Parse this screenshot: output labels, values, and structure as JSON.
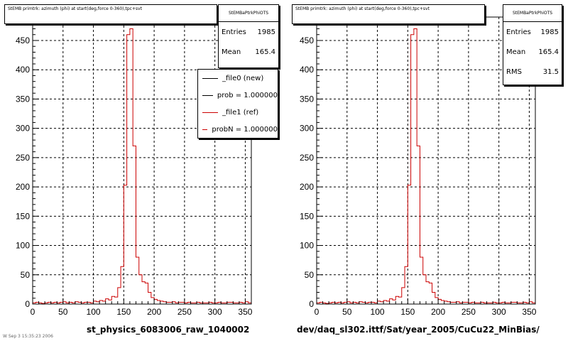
{
  "footer_text": "W Sep 3 15:35:23 2006",
  "chart_data": [
    {
      "type": "histogram",
      "title": "StEMB primtrk: azimuth (phi) at start(deg,force 0-360),tpc+svt",
      "xlabel": "st_physics_6083006_raw_1040002",
      "ylabel": "",
      "xlim": [
        0,
        360
      ],
      "ylim": [
        0,
        490
      ],
      "bin_width": 5,
      "x_ticks": [
        0,
        50,
        100,
        150,
        200,
        250,
        300,
        350
      ],
      "y_ticks": [
        0,
        50,
        100,
        150,
        200,
        250,
        300,
        350,
        400,
        450
      ],
      "grid": true,
      "stats": {
        "name": "StEMBaPtrkPhiOTS",
        "rows": [
          {
            "label": "Entries",
            "value": "1985"
          },
          {
            "label": "Mean",
            "value": "165.4"
          }
        ]
      },
      "legend": {
        "placement": "top-right",
        "entries": [
          {
            "label": "_file0 (new)",
            "color": "#000000"
          },
          {
            "label": "prob = 1.000000",
            "color": "#000000"
          },
          {
            "label": "_file1 (ref)",
            "color": "#cc0000"
          },
          {
            "label": "probN = 1.000000",
            "color": "#cc0000"
          }
        ]
      },
      "series": [
        {
          "color": "#cc0000",
          "values": [
            2,
            3,
            2,
            1,
            2,
            3,
            2,
            3,
            2,
            3,
            4,
            2,
            3,
            2,
            4,
            3,
            2,
            3,
            3,
            2,
            5,
            4,
            6,
            5,
            9,
            7,
            13,
            12,
            28,
            64,
            203,
            460,
            470,
            270,
            80,
            50,
            38,
            36,
            20,
            11,
            8,
            6,
            5,
            4,
            3,
            3,
            4,
            2,
            3,
            3,
            2,
            3,
            2,
            2,
            3,
            2,
            2,
            2,
            3,
            2,
            2,
            3,
            2,
            2,
            3,
            3,
            2,
            2,
            3,
            2,
            4,
            2
          ]
        }
      ]
    },
    {
      "type": "histogram",
      "title": "StEMB primtrk: azimuth (phi) at start(deg,force 0-360),tpc+svt",
      "xlabel": "dev/daq_sl302.ittf/Sat/year_2005/CuCu22_MinBias/",
      "ylabel": "",
      "xlim": [
        0,
        360
      ],
      "ylim": [
        0,
        490
      ],
      "bin_width": 5,
      "x_ticks": [
        0,
        50,
        100,
        150,
        200,
        250,
        300,
        350
      ],
      "y_ticks": [
        0,
        50,
        100,
        150,
        200,
        250,
        300,
        350,
        400,
        450
      ],
      "grid": true,
      "stats": {
        "name": "StEMBaPtrkPhiOTS",
        "rows": [
          {
            "label": "Entries",
            "value": "1985"
          },
          {
            "label": "Mean",
            "value": "165.4"
          },
          {
            "label": "RMS",
            "value": "31.5"
          }
        ]
      },
      "series": [
        {
          "color": "#cc0000",
          "values": [
            2,
            3,
            2,
            1,
            2,
            3,
            2,
            3,
            2,
            3,
            4,
            2,
            3,
            2,
            4,
            3,
            2,
            3,
            3,
            2,
            5,
            4,
            6,
            5,
            9,
            7,
            13,
            12,
            28,
            64,
            203,
            460,
            470,
            270,
            80,
            50,
            38,
            36,
            20,
            11,
            8,
            6,
            5,
            4,
            3,
            3,
            4,
            2,
            3,
            3,
            2,
            3,
            2,
            2,
            3,
            2,
            2,
            2,
            3,
            2,
            2,
            3,
            2,
            2,
            3,
            3,
            2,
            2,
            3,
            2,
            4,
            2
          ]
        }
      ]
    }
  ]
}
